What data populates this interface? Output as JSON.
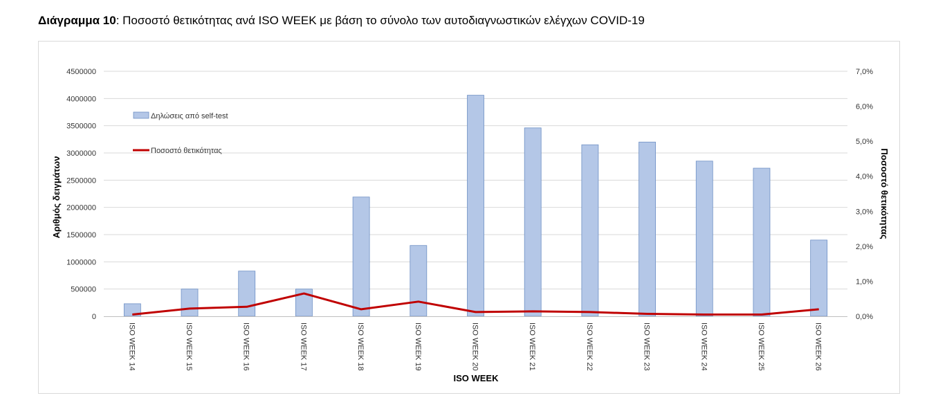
{
  "title": {
    "prefix": "Διάγραμμα 10",
    "text": ": Ποσοστό θετικότητας ανά ISO WEEK με βάση το σύνολο των αυτοδιαγνωστικών ελέγχων COVID-19"
  },
  "chart_data": {
    "type": "bar",
    "categories": [
      "ISO WEEK 14",
      "ISO WEEK 15",
      "ISO WEEK 16",
      "ISO WEEK 17",
      "ISO WEEK 18",
      "ISO WEEK 19",
      "ISO WEEK 20",
      "ISO WEEK 21",
      "ISO WEEK 22",
      "ISO WEEK 23",
      "ISO WEEK 24",
      "ISO WEEK 25",
      "ISO WEEK 26"
    ],
    "series": [
      {
        "name": "Δηλώσεις από self-test",
        "type": "bar",
        "axis": "left",
        "color": "#b4c7e7",
        "values": [
          230000,
          500000,
          830000,
          500000,
          2190000,
          1300000,
          4060000,
          3460000,
          3150000,
          3200000,
          2850000,
          2720000,
          1400000
        ]
      },
      {
        "name": "Ποσοστό θετικότητας",
        "type": "line",
        "axis": "right",
        "color": "#c00000",
        "values": [
          0.05,
          0.22,
          0.27,
          0.65,
          0.2,
          0.42,
          0.12,
          0.14,
          0.12,
          0.07,
          0.05,
          0.05,
          0.2
        ]
      }
    ],
    "xlabel": "ISO WEEK",
    "ylabel": "Αριθμός δειγμάτων",
    "y2label": "Ποσοστό θετικότητας",
    "ylim": [
      0,
      4500000
    ],
    "y_ticks": [
      "0",
      "500000",
      "1000000",
      "1500000",
      "2000000",
      "2500000",
      "3000000",
      "3500000",
      "4000000",
      "4500000"
    ],
    "y2lim": [
      0,
      7.0
    ],
    "y2_ticks": [
      "0,0%",
      "1,0%",
      "2,0%",
      "3,0%",
      "4,0%",
      "5,0%",
      "6,0%",
      "7,0%"
    ],
    "grid": true,
    "legend_position": "top-left"
  }
}
